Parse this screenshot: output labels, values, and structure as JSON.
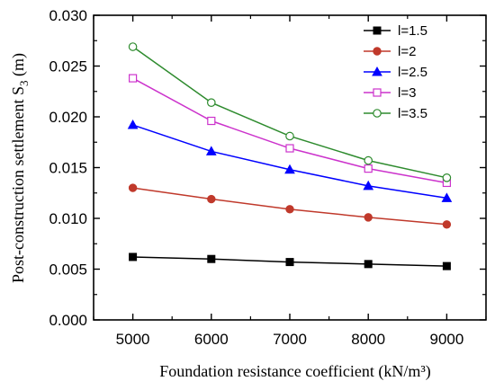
{
  "chart_data": {
    "type": "line",
    "x": [
      5000,
      6000,
      7000,
      8000,
      9000
    ],
    "xlabel": "Foundation resistance coefficient (kN/m³)",
    "ylabel_main": "Post-construction settlement S",
    "ylabel_sub": "3",
    "ylabel_unit": " (m)",
    "xlim": [
      4500,
      9500
    ],
    "ylim": [
      0,
      0.03
    ],
    "xticks": [
      5000,
      6000,
      7000,
      8000,
      9000
    ],
    "yticks": [
      0.0,
      0.005,
      0.01,
      0.015,
      0.02,
      0.025,
      0.03
    ],
    "ytick_labels": [
      "0.000",
      "0.005",
      "0.010",
      "0.015",
      "0.020",
      "0.025",
      "0.030"
    ],
    "grid": false,
    "legend_position": "top-right",
    "series": [
      {
        "name": "l=1.5",
        "values": [
          0.0062,
          0.006,
          0.0057,
          0.0055,
          0.0053
        ],
        "color": "#000000",
        "marker": "square-filled"
      },
      {
        "name": "l=2",
        "values": [
          0.013,
          0.0119,
          0.0109,
          0.0101,
          0.0094
        ],
        "color": "#c0392b",
        "marker": "circle-filled"
      },
      {
        "name": "l=2.5",
        "values": [
          0.0192,
          0.0166,
          0.0148,
          0.0132,
          0.012
        ],
        "color": "#0000ff",
        "marker": "triangle-filled"
      },
      {
        "name": "l=3",
        "values": [
          0.0238,
          0.0196,
          0.0169,
          0.0149,
          0.0135
        ],
        "color": "#cc33cc",
        "marker": "square-open"
      },
      {
        "name": "l=3.5",
        "values": [
          0.0269,
          0.0214,
          0.0181,
          0.0157,
          0.014
        ],
        "color": "#2e8b2e",
        "marker": "circle-open"
      }
    ]
  }
}
